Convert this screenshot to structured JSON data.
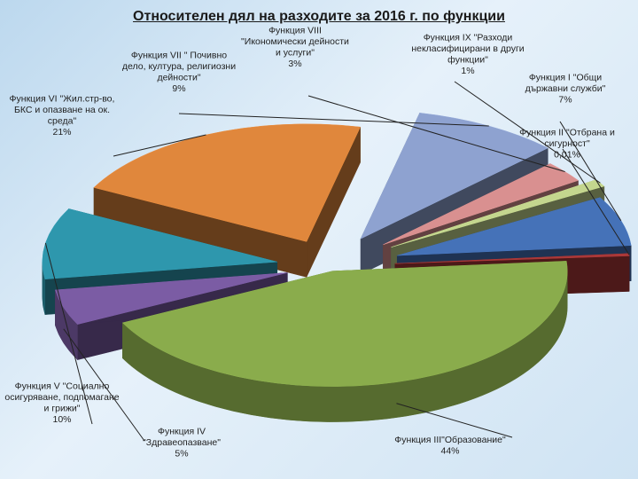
{
  "chart_data": {
    "type": "pie",
    "title": "Относителен дял на разходите за 2016 г. по функции",
    "slices": [
      {
        "key": "f3",
        "lines": [
          "Функция III\"Образование\"",
          "44%"
        ],
        "value": 44,
        "color": "#8aac4c"
      },
      {
        "key": "f4",
        "lines": [
          "Функция IV",
          "\"Здравеопазване\"",
          "5%"
        ],
        "value": 5,
        "color": "#7b5ca4"
      },
      {
        "key": "f5",
        "lines": [
          "Функция V \"Социално",
          "осигуряване, подпомагане",
          "и грижи\"",
          "10%"
        ],
        "value": 10,
        "color": "#2e97ad"
      },
      {
        "key": "f6",
        "lines": [
          "Функция VI \"Жил.стр-во,",
          "БКС и опазване на ок.",
          "среда\"",
          "21%"
        ],
        "value": 21,
        "color": "#e0873c"
      },
      {
        "key": "f7",
        "lines": [
          "Функция VII \" Почивно",
          "дело, култура, религиозни",
          "дейности\"",
          "9%"
        ],
        "value": 9,
        "color": "#8ea2d0"
      },
      {
        "key": "f8",
        "lines": [
          "Функция VIII",
          "\"Икономически дейности",
          "и услуги\"",
          "3%"
        ],
        "value": 3,
        "color": "#d99090"
      },
      {
        "key": "f9",
        "lines": [
          "Функция IX \"Разходи",
          "некласифицирани в други",
          "функции\"",
          "1%"
        ],
        "value": 1,
        "color": "#c4d68e"
      },
      {
        "key": "f1",
        "lines": [
          "Функция I \"Общи",
          "държавни служби\"",
          "7%"
        ],
        "value": 7,
        "color": "#4572b8"
      },
      {
        "key": "f2",
        "lines": [
          "Функция II \"Отбрана и",
          "сигурност\"",
          "0,01%"
        ],
        "value": 0.01,
        "color": "#a93838"
      }
    ]
  }
}
